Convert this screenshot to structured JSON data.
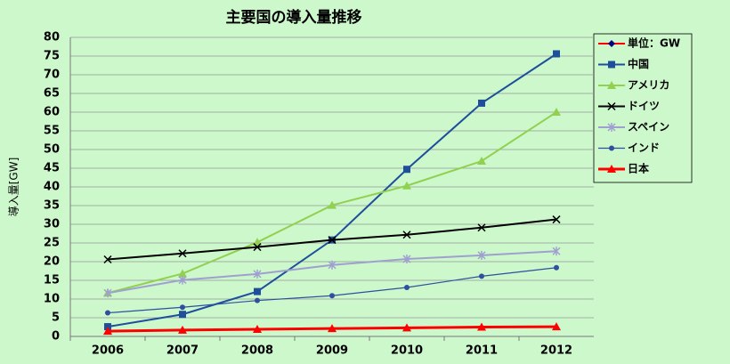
{
  "chart_data": {
    "type": "line",
    "title": "主要国の導入量推移",
    "y_label": "導入量[GW]",
    "categories": [
      "2006",
      "2007",
      "2008",
      "2009",
      "2010",
      "2011",
      "2012"
    ],
    "series": [
      {
        "name": "単位：GW",
        "color": "#ff0000",
        "marker": "diamond",
        "values": [
          null,
          null,
          null,
          null,
          null,
          null,
          null
        ]
      },
      {
        "name": "中国",
        "color": "#1f4e9c",
        "marker": "square",
        "values": [
          2.6,
          5.9,
          12.0,
          25.8,
          44.7,
          62.4,
          75.6
        ]
      },
      {
        "name": "アメリカ",
        "color": "#92d050",
        "marker": "triangle",
        "values": [
          11.6,
          16.8,
          25.2,
          35.1,
          40.3,
          46.9,
          60.0
        ]
      },
      {
        "name": "ドイツ",
        "color": "#000000",
        "marker": "x",
        "values": [
          20.6,
          22.2,
          23.9,
          25.8,
          27.2,
          29.1,
          31.3
        ]
      },
      {
        "name": "スペイン",
        "color": "#a0a0d0",
        "marker": "star",
        "values": [
          11.6,
          15.1,
          16.7,
          19.1,
          20.7,
          21.7,
          22.8
        ]
      },
      {
        "name": "インド",
        "color": "#2f4f9f",
        "marker": "circle",
        "values": [
          6.3,
          7.8,
          9.6,
          10.9,
          13.1,
          16.1,
          18.4
        ]
      },
      {
        "name": "日本",
        "color": "#ff0000",
        "marker": "triangle",
        "values": [
          1.4,
          1.7,
          1.9,
          2.1,
          2.3,
          2.5,
          2.6
        ]
      }
    ],
    "ylim": [
      0,
      80
    ],
    "yticks": [
      0,
      5,
      10,
      15,
      20,
      25,
      30,
      35,
      40,
      45,
      50,
      55,
      60,
      65,
      70,
      75,
      80
    ],
    "grid": true,
    "legend": "right"
  }
}
